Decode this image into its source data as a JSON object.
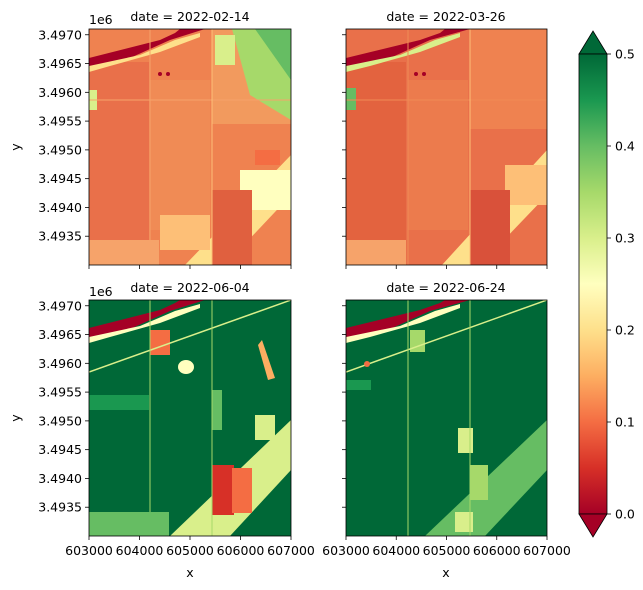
{
  "chart_data": {
    "type": "heatmap",
    "xlabel": "x",
    "ylabel": "y",
    "y_offset_label": "1e6",
    "xlim": [
      603000,
      607000
    ],
    "ylim": [
      3.493,
      3.4971
    ],
    "x_ticks": [
      "603000",
      "604000",
      "605000",
      "606000",
      "607000"
    ],
    "y_ticks": [
      "3.4935",
      "3.4940",
      "3.4945",
      "3.4950",
      "3.4955",
      "3.4960",
      "3.4965",
      "3.4970"
    ],
    "panels": [
      {
        "title": "date = 2022-02-14",
        "median_value": 0.15
      },
      {
        "title": "date = 2022-03-26",
        "median_value": 0.12
      },
      {
        "title": "date = 2022-06-04",
        "median_value": 0.5
      },
      {
        "title": "date = 2022-06-24",
        "median_value": 0.5
      }
    ],
    "colorbar": {
      "colormap": "RdYlGn",
      "range": [
        0.0,
        0.5
      ],
      "ticks": [
        "0.0",
        "0.1",
        "0.2",
        "0.3",
        "0.4",
        "0.5"
      ],
      "extend": "both"
    }
  }
}
